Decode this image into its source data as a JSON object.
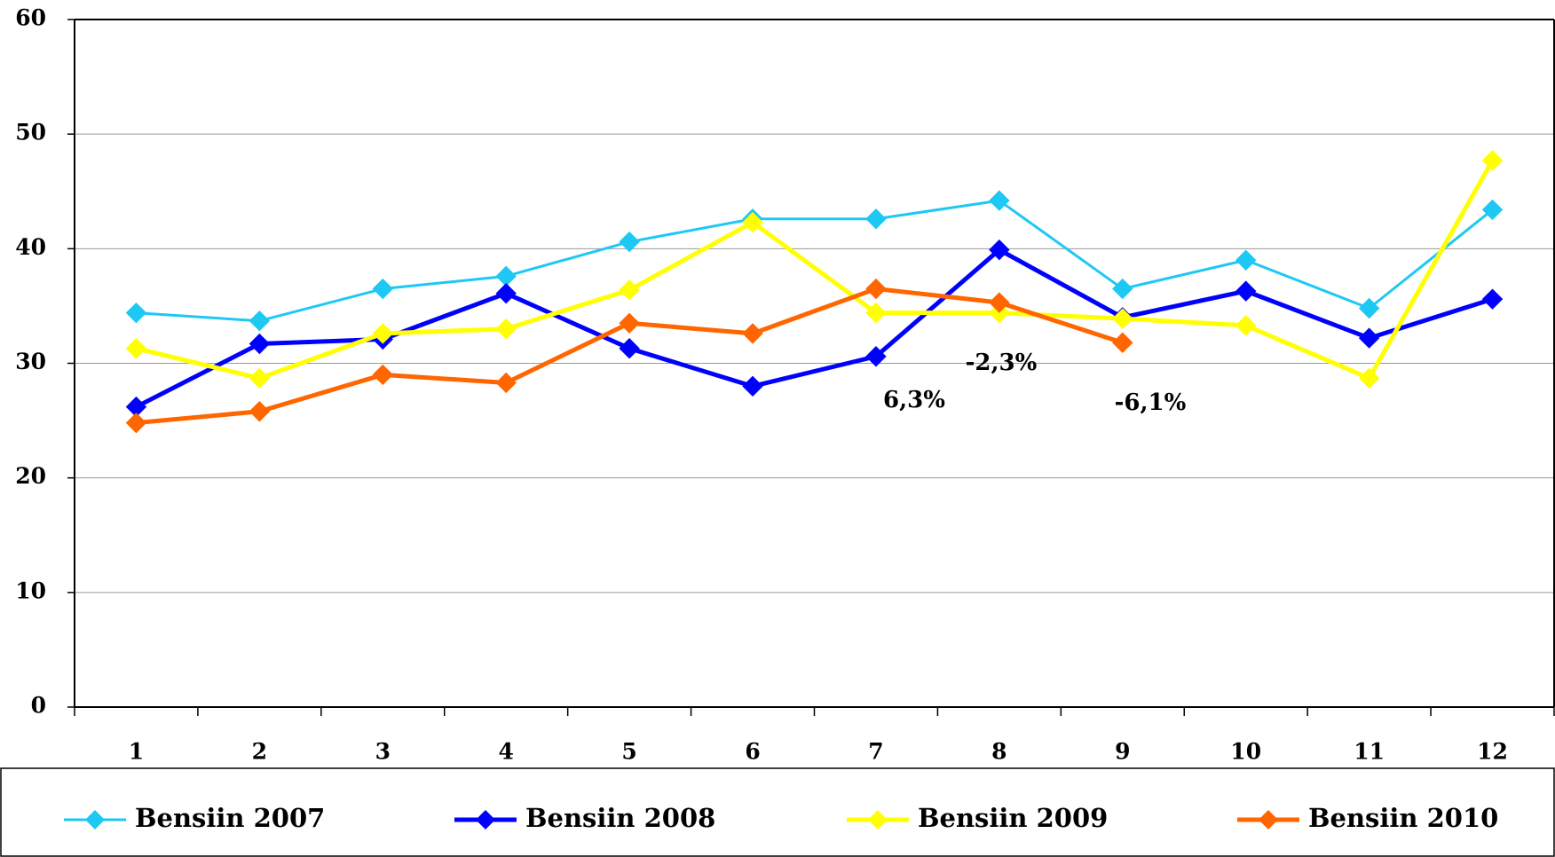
{
  "chart_data": {
    "type": "line",
    "categories": [
      "1",
      "2",
      "3",
      "4",
      "5",
      "6",
      "7",
      "8",
      "9",
      "10",
      "11",
      "12"
    ],
    "series": [
      {
        "name": "Bensiin 2007",
        "color": "#1ec8f5",
        "values": [
          34.4,
          33.7,
          36.5,
          37.6,
          40.6,
          42.6,
          42.6,
          44.2,
          36.5,
          39.0,
          34.8,
          43.4
        ]
      },
      {
        "name": "Bensiin 2008",
        "color": "#0000ff",
        "values": [
          26.2,
          31.7,
          32.1,
          36.1,
          31.3,
          28.0,
          30.6,
          39.9,
          34.0,
          36.3,
          32.2,
          35.6
        ]
      },
      {
        "name": "Bensiin 2009",
        "color": "#ffff00",
        "values": [
          31.3,
          28.7,
          32.6,
          33.0,
          36.4,
          42.3,
          34.4,
          34.4,
          33.9,
          33.3,
          28.7,
          47.7
        ]
      },
      {
        "name": "Bensiin 2010",
        "color": "#ff6600",
        "values": [
          24.8,
          25.8,
          29.0,
          28.3,
          33.5,
          32.6,
          36.5,
          35.3,
          31.8,
          null,
          null,
          null
        ]
      }
    ],
    "annotations": [
      "6,3%",
      "-2,3%",
      "-6,1%"
    ],
    "ylim": [
      0,
      60
    ],
    "yticks": [
      0,
      10,
      20,
      30,
      40,
      50,
      60
    ],
    "grid": true,
    "legend": "bottom"
  }
}
